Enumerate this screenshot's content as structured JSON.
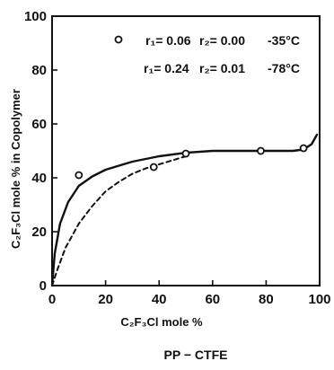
{
  "chart_data": {
    "type": "line",
    "xlabel": "C₂F₃Cl mole %",
    "ylabel": "C₂F₃Cl mole % in Copolymer",
    "caption": "PP − CTFE",
    "xlim": [
      0,
      100
    ],
    "ylim": [
      0,
      100
    ],
    "xticks": [
      "0",
      "20",
      "40",
      "60",
      "80",
      "100"
    ],
    "yticks": [
      "0",
      "20",
      "40",
      "60",
      "80",
      "100"
    ],
    "grid": false,
    "legend": {
      "placement": "top-right",
      "rows": [
        {
          "r1": "r₁= 0.06",
          "r2": "r₂= 0.00",
          "temp": "-35°C"
        },
        {
          "r1": "r₁= 0.24",
          "r2": "r₂= 0.01",
          "temp": "-78°C"
        }
      ]
    },
    "points": {
      "x": [
        10,
        38,
        50,
        78,
        94
      ],
      "y": [
        41,
        44,
        49,
        50,
        51
      ]
    },
    "series": [
      {
        "style": "solid",
        "x": [
          0,
          1,
          3,
          6,
          10,
          15,
          20,
          30,
          40,
          50,
          60,
          70,
          80,
          90,
          94,
          97,
          99
        ],
        "y": [
          0,
          12,
          23,
          31,
          37,
          40.5,
          43,
          46,
          48,
          49.3,
          50,
          50,
          50,
          50,
          50.5,
          52.5,
          56
        ]
      },
      {
        "style": "dashed",
        "x": [
          0,
          2,
          5,
          10,
          15,
          20,
          25,
          30,
          35,
          40,
          45,
          50
        ],
        "y": [
          0,
          6,
          14,
          23,
          29.5,
          35,
          38.5,
          41.5,
          43.5,
          45,
          46.5,
          48
        ]
      }
    ]
  }
}
